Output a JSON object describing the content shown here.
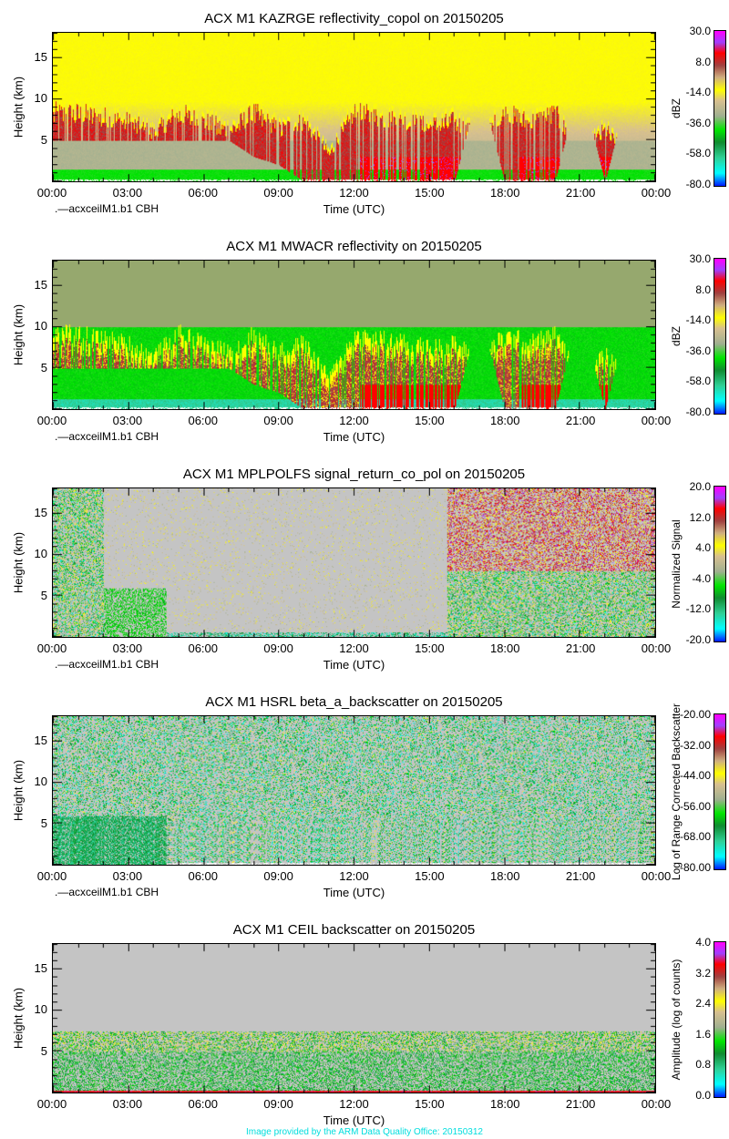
{
  "footer": "Image provided by the ARM Data Quality Office: 20150312",
  "chart_data": [
    {
      "type": "heatmap",
      "title": "ACX M1 KAZRGE reflectivity_copol on 20150205",
      "xlabel": "Time (UTC)",
      "ylabel": "Height (km)",
      "xticks": [
        "00:00",
        "03:00",
        "06:00",
        "09:00",
        "12:00",
        "15:00",
        "18:00",
        "21:00",
        "00:00"
      ],
      "yticks": [
        "5",
        "10",
        "15"
      ],
      "ylim": [
        0,
        18
      ],
      "legend": ".—acxceilM1.b1 CBH",
      "colorbar": {
        "label": "dBZ",
        "ticks": [
          "30.0",
          "8.0",
          "-14.0",
          "-36.0",
          "-58.0",
          "-80.0"
        ],
        "range": [
          -80,
          30
        ]
      },
      "style": "kazr"
    },
    {
      "type": "heatmap",
      "title": "ACX M1 MWACR reflectivity on 20150205",
      "xlabel": "Time (UTC)",
      "ylabel": "Height (km)",
      "xticks": [
        "00:00",
        "03:00",
        "06:00",
        "09:00",
        "12:00",
        "15:00",
        "18:00",
        "21:00",
        "00:00"
      ],
      "yticks": [
        "5",
        "10",
        "15"
      ],
      "ylim": [
        0,
        18
      ],
      "legend": ".—acxceilM1.b1 CBH",
      "colorbar": {
        "label": "dBZ",
        "ticks": [
          "30.0",
          "8.0",
          "-14.0",
          "-36.0",
          "-58.0",
          "-80.0"
        ],
        "range": [
          -80,
          30
        ]
      },
      "style": "mwacr"
    },
    {
      "type": "heatmap",
      "title": "ACX M1 MPLPOLFS signal_return_co_pol on 20150205",
      "xlabel": "Time (UTC)",
      "ylabel": "Height (km)",
      "xticks": [
        "00:00",
        "03:00",
        "06:00",
        "09:00",
        "12:00",
        "15:00",
        "18:00",
        "21:00",
        "00:00"
      ],
      "yticks": [
        "5",
        "10",
        "15"
      ],
      "ylim": [
        0,
        18
      ],
      "legend": ".—acxceilM1.b1 CBH",
      "colorbar": {
        "label": "Normalized Signal",
        "ticks": [
          "20.0",
          "12.0",
          "4.0",
          "-4.0",
          "-12.0",
          "-20.0"
        ],
        "range": [
          -20,
          20
        ]
      },
      "style": "mpl"
    },
    {
      "type": "heatmap",
      "title": "ACX M1 HSRL beta_a_backscatter on 20150205",
      "xlabel": "Time (UTC)",
      "ylabel": "Height (km)",
      "xticks": [
        "00:00",
        "03:00",
        "06:00",
        "09:00",
        "12:00",
        "15:00",
        "18:00",
        "21:00",
        "00:00"
      ],
      "yticks": [
        "5",
        "10",
        "15"
      ],
      "ylim": [
        0,
        18
      ],
      "legend": ".—acxceilM1.b1 CBH",
      "colorbar": {
        "label": "Log of Range Corrected Backscatter",
        "ticks": [
          "-20.00",
          "-32.00",
          "-44.00",
          "-56.00",
          "-68.00",
          "-80.00"
        ],
        "range": [
          -80,
          -20
        ]
      },
      "style": "hsrl"
    },
    {
      "type": "heatmap",
      "title": "ACX M1 CEIL backscatter on 20150205",
      "xlabel": "Time (UTC)",
      "ylabel": "Height (km)",
      "xticks": [
        "00:00",
        "03:00",
        "06:00",
        "09:00",
        "12:00",
        "15:00",
        "18:00",
        "21:00",
        "00:00"
      ],
      "yticks": [
        "5",
        "10",
        "15"
      ],
      "ylim": [
        0,
        18
      ],
      "legend": "",
      "colorbar": {
        "label": "Amplitude (log of counts)",
        "ticks": [
          "4.0",
          "3.2",
          "2.4",
          "1.6",
          "0.8",
          "0.0"
        ],
        "range": [
          0,
          4
        ]
      },
      "style": "ceil"
    }
  ]
}
